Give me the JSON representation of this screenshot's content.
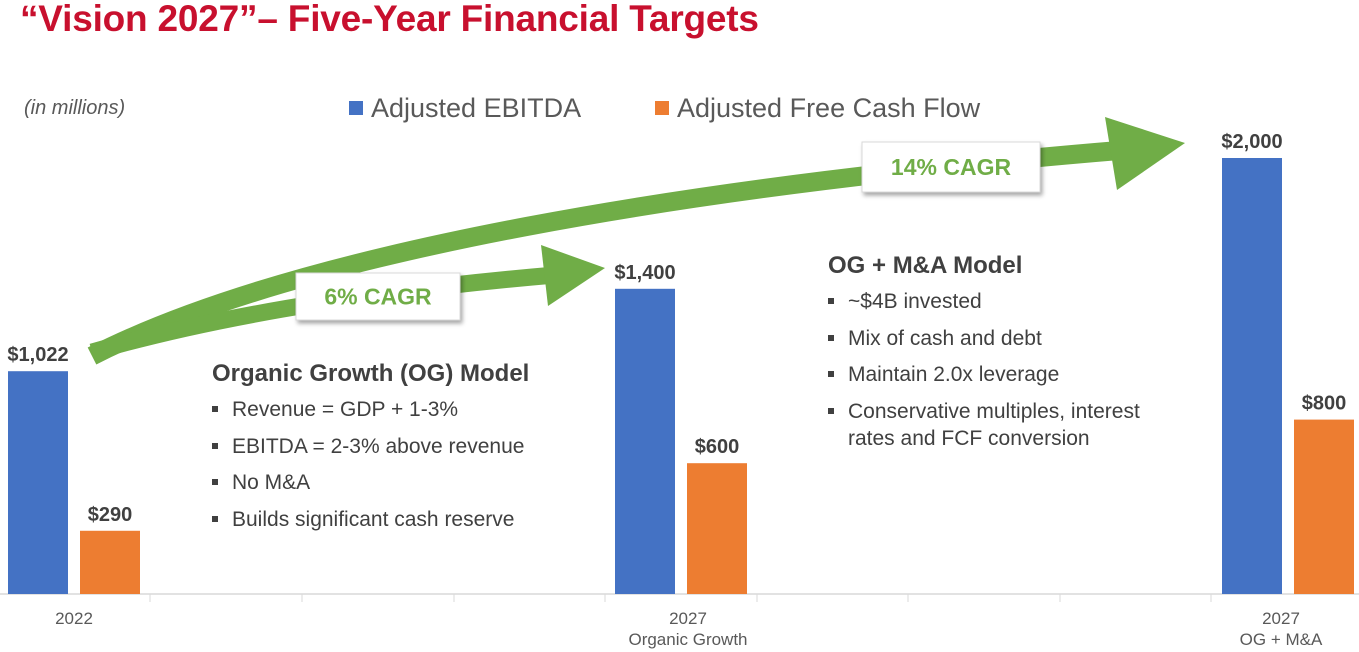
{
  "header": {
    "title": "“Vision 2027”– Five-Year Financial Targets",
    "units_note": "(in millions)"
  },
  "colors": {
    "title": "#c8102e",
    "ebitda": "#4472c4",
    "fcf": "#ed7d31",
    "cagr_arrow": "#70ad47",
    "text": "#404040"
  },
  "chart_data": {
    "type": "bar",
    "categories": [
      [
        "2022"
      ],
      [
        "2027",
        "Organic Growth"
      ],
      [
        "2027",
        "OG + M&A"
      ]
    ],
    "series": [
      {
        "name": "Adjusted EBITDA",
        "values": [
          1022,
          1400,
          2000
        ],
        "labels": [
          "$1,022",
          "$1,400",
          "$2,000"
        ]
      },
      {
        "name": "Adjusted Free Cash Flow",
        "values": [
          290,
          600,
          800
        ],
        "labels": [
          "$290",
          "$600",
          "$800"
        ]
      }
    ],
    "ylim": [
      0,
      2200
    ],
    "legend_position": "top",
    "annotations": [
      {
        "text": "6% CAGR",
        "from": "2022",
        "to": "2027 Organic Growth"
      },
      {
        "text": "14% CAGR",
        "from": "2022",
        "to": "2027 OG + M&A"
      }
    ]
  },
  "og_model": {
    "heading": "Organic Growth (OG) Model",
    "bullets": [
      "Revenue = GDP + 1-3%",
      "EBITDA = 2-3% above revenue",
      "No M&A",
      "Builds significant cash reserve"
    ]
  },
  "mna_model": {
    "heading": "OG + M&A Model",
    "bullets": [
      "~$4B invested",
      "Mix of cash and debt",
      "Maintain 2.0x leverage",
      "Conservative multiples, interest rates and FCF conversion"
    ]
  }
}
